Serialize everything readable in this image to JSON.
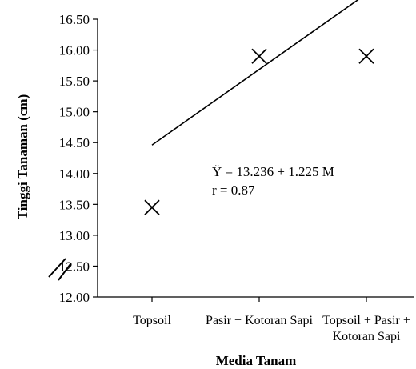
{
  "chart_data": {
    "type": "scatter",
    "title": "",
    "xlabel": "Media Tanam",
    "ylabel": "Tinggi Tanaman (cm)",
    "x_tick_labels": [
      [
        "Topsoil"
      ],
      [
        "Pasir + Kotoran Sapi"
      ],
      [
        "Topsoil + Pasir +",
        "Kotoran Sapi"
      ]
    ],
    "y_ticks": [
      "16.50",
      "16.00",
      "15.50",
      "15.00",
      "14.50",
      "14.00",
      "13.50",
      "13.00",
      "12.50",
      "12.00"
    ],
    "ylim": [
      12.0,
      16.5
    ],
    "axis_break": true,
    "grid": false,
    "points": [
      {
        "x": 1,
        "y": 13.45
      },
      {
        "x": 2,
        "y": 15.9
      },
      {
        "x": 3,
        "y": 15.9
      }
    ],
    "trendline": {
      "x_range": [
        1,
        3
      ],
      "equation": "Ÿ = 13.236 + 1.225 M",
      "r": "r = 0.87"
    },
    "marker": "x",
    "colors": {
      "ink": "#000000",
      "background": "#ffffff"
    }
  }
}
